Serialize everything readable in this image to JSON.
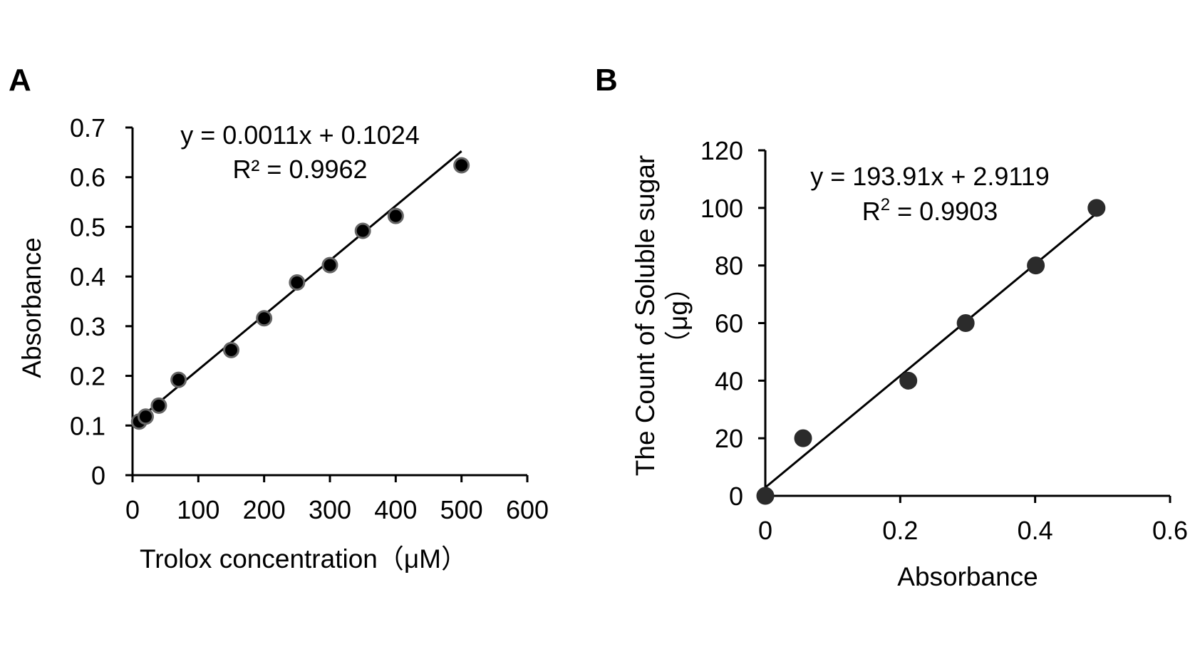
{
  "chart_data": [
    {
      "panel": "A",
      "type": "scatter",
      "xlabel": "Trolox concentration（μM）",
      "ylabel": "Absorbance",
      "xlim": [
        0,
        600
      ],
      "ylim": [
        0,
        0.7
      ],
      "xticks": [
        0,
        100,
        200,
        300,
        400,
        500,
        600
      ],
      "yticks": [
        0,
        0.1,
        0.2,
        0.3,
        0.4,
        0.5,
        0.6,
        0.7
      ],
      "xtick_labels": [
        "0",
        "100",
        "200",
        "300",
        "400",
        "500",
        "600"
      ],
      "ytick_labels": [
        "0",
        "0.1",
        "0.2",
        "0.3",
        "0.4",
        "0.5",
        "0.6",
        "0.7"
      ],
      "points": [
        {
          "x": 10,
          "y": 0.108
        },
        {
          "x": 20,
          "y": 0.118
        },
        {
          "x": 40,
          "y": 0.14
        },
        {
          "x": 70,
          "y": 0.192
        },
        {
          "x": 150,
          "y": 0.252
        },
        {
          "x": 200,
          "y": 0.316
        },
        {
          "x": 250,
          "y": 0.388
        },
        {
          "x": 300,
          "y": 0.423
        },
        {
          "x": 350,
          "y": 0.492
        },
        {
          "x": 400,
          "y": 0.522
        },
        {
          "x": 500,
          "y": 0.624
        }
      ],
      "trendline": {
        "slope": 0.0011,
        "intercept": 0.1024,
        "x_start": 10,
        "x_end": 500
      },
      "equation": "y = 0.0011x + 0.1024",
      "r2_label": "R² = 0.9962",
      "grid": false,
      "legend": "none"
    },
    {
      "panel": "B",
      "type": "scatter",
      "xlabel": "Absorbance",
      "ylabel_line1": "The Count of Soluble sugar",
      "ylabel_line2": "（μg）",
      "xlim": [
        0,
        0.6
      ],
      "ylim": [
        0,
        120
      ],
      "xticks": [
        0,
        0.2,
        0.4,
        0.6
      ],
      "yticks": [
        0,
        20,
        40,
        60,
        80,
        100,
        120
      ],
      "xtick_labels": [
        "0",
        "0.2",
        "0.4",
        "0.6"
      ],
      "ytick_labels": [
        "0",
        "20",
        "40",
        "60",
        "80",
        "100",
        "120"
      ],
      "points": [
        {
          "x": 0,
          "y": 0
        },
        {
          "x": 0.056,
          "y": 20
        },
        {
          "x": 0.212,
          "y": 40
        },
        {
          "x": 0.297,
          "y": 60
        },
        {
          "x": 0.401,
          "y": 80
        },
        {
          "x": 0.491,
          "y": 100
        }
      ],
      "trendline": {
        "slope": 193.91,
        "intercept": 2.9119,
        "x_start": 0,
        "x_end": 0.491
      },
      "equation": "y = 193.91x + 2.9119",
      "r2_label_prefix": "R",
      "r2_label_sup": "2",
      "r2_label_rest": " = 0.9903",
      "grid": false,
      "legend": "none"
    }
  ]
}
